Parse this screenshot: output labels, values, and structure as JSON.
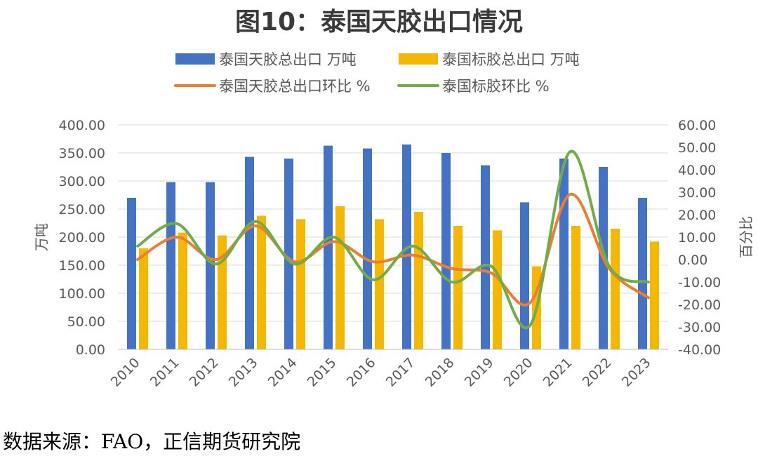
{
  "title": "图10：泰国天胶出口情况",
  "source": "数据来源：FAO，正信期货研究院",
  "chart_data": {
    "type": "bar",
    "categories": [
      "2010",
      "2011",
      "2012",
      "2013",
      "2014",
      "2015",
      "2016",
      "2017",
      "2018",
      "2019",
      "2020",
      "2021",
      "2022",
      "2023"
    ],
    "series": [
      {
        "name": "泰国天胶总出口 万吨",
        "kind": "bar",
        "axis": "left",
        "color": "#4472C4",
        "values": [
          270,
          298,
          298,
          343,
          340,
          363,
          358,
          365,
          350,
          328,
          262,
          340,
          325,
          270
        ]
      },
      {
        "name": "泰国标胶总出口 万吨",
        "kind": "bar",
        "axis": "left",
        "color": "#F5B800",
        "values": [
          180,
          208,
          203,
          238,
          232,
          255,
          232,
          245,
          220,
          212,
          148,
          220,
          215,
          192
        ]
      },
      {
        "name": "泰国天胶总出口环比 %",
        "kind": "line",
        "axis": "right",
        "color": "#ED7D31",
        "values": [
          0,
          10,
          0,
          15,
          -1,
          8,
          -1,
          2,
          -4,
          -6,
          -19,
          29,
          -4,
          -17
        ]
      },
      {
        "name": "泰国标胶环比 %",
        "kind": "line",
        "axis": "right",
        "color": "#70AD47",
        "values": [
          6,
          16,
          -2,
          17,
          -2,
          10,
          -9,
          6,
          -10,
          -3,
          -29,
          48,
          -3,
          -10
        ]
      }
    ],
    "y_left": {
      "label": "万吨",
      "min": 0,
      "max": 400,
      "step": 50,
      "ticks": [
        "0.00",
        "50.00",
        "100.00",
        "150.00",
        "200.00",
        "250.00",
        "300.00",
        "350.00",
        "400.00"
      ]
    },
    "y_right": {
      "label": "百分比",
      "min": -40,
      "max": 60,
      "step": 10,
      "ticks": [
        "-40.00",
        "-30.00",
        "-20.00",
        "-10.00",
        "0.00",
        "10.00",
        "20.00",
        "30.00",
        "40.00",
        "50.00",
        "60.00"
      ]
    },
    "grid": true,
    "legend_position": "top"
  }
}
